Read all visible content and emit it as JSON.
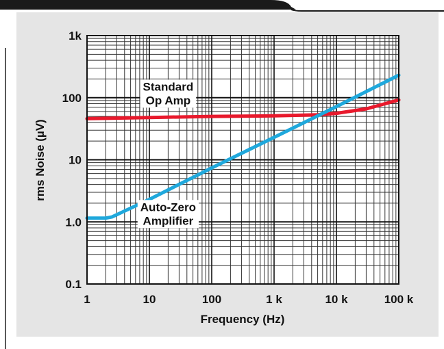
{
  "chart_data": {
    "type": "line",
    "title": "",
    "xlabel": "Frequency (Hz)",
    "ylabel": "rms Noise (µV)",
    "x_scale": "log",
    "y_scale": "log",
    "xlim": [
      1,
      100000
    ],
    "ylim": [
      0.1,
      1000
    ],
    "x_ticks": [
      {
        "value": 1,
        "label": "1"
      },
      {
        "value": 10,
        "label": "10"
      },
      {
        "value": 100,
        "label": "100"
      },
      {
        "value": 1000,
        "label": "1 k"
      },
      {
        "value": 10000,
        "label": "10 k"
      },
      {
        "value": 100000,
        "label": "100 k"
      }
    ],
    "y_ticks": [
      {
        "value": 0.1,
        "label": "0.1"
      },
      {
        "value": 1,
        "label": "1.0"
      },
      {
        "value": 10,
        "label": "10"
      },
      {
        "value": 100,
        "label": "100"
      },
      {
        "value": 1000,
        "label": "1k"
      }
    ],
    "grid": true,
    "series": [
      {
        "color": "#e8192c",
        "x": [
          1,
          10,
          100,
          1000,
          5000,
          10000,
          30000,
          100000
        ],
        "y": [
          46,
          48,
          50,
          51,
          53,
          56,
          66,
          92
        ]
      },
      {
        "color": "#1fa8dc",
        "x": [
          1,
          2,
          2.5,
          10,
          100,
          1000,
          10000,
          100000
        ],
        "y": [
          1.15,
          1.15,
          1.2,
          2.3,
          7.4,
          23,
          72,
          230
        ]
      }
    ],
    "annotations": [
      {
        "lines": [
          "Standard",
          "Op Amp"
        ],
        "x": 20,
        "y": 130
      },
      {
        "lines": [
          "Auto-Zero",
          "Amplifier"
        ],
        "x": 20,
        "y": 1.5
      }
    ],
    "colors": {
      "panel_background": "#e5e5e5",
      "plot_background": "#ffffff",
      "grid_major": "#111111",
      "grid_minor": "#333333",
      "header_bar": "#1a1a1a"
    }
  }
}
